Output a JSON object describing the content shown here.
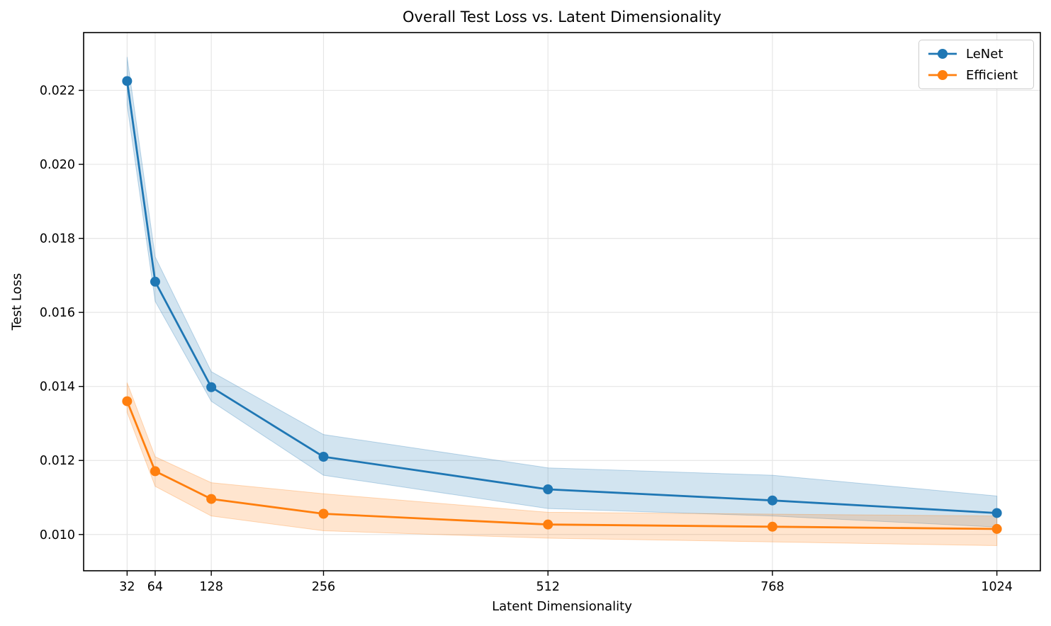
{
  "chart_data": {
    "type": "line",
    "title": "Overall Test Loss vs. Latent Dimensionality",
    "xlabel": "Latent Dimensionality",
    "ylabel": "Test Loss",
    "legend_position": "upper right",
    "grid": true,
    "band_alpha": 0.2,
    "grid_color": "#e6e6e6",
    "axis_color": "#000000",
    "x": [
      32,
      64,
      128,
      256,
      512,
      768,
      1024
    ],
    "x_ticks": [
      32,
      64,
      128,
      256,
      512,
      768,
      1024
    ],
    "x_tick_labels": [
      "32",
      "64",
      "128",
      "256",
      "512",
      "768",
      "1024"
    ],
    "y_ticks": [
      0.01,
      0.012,
      0.014,
      0.016,
      0.018,
      0.02,
      0.022
    ],
    "y_tick_labels": [
      "0.010",
      "0.012",
      "0.014",
      "0.016",
      "0.018",
      "0.020",
      "0.022"
    ],
    "xlim": [
      -17.6,
      1073.6
    ],
    "ylim": [
      0.00902,
      0.02356
    ],
    "series": [
      {
        "name": "LeNet",
        "color": "#1f77b4",
        "values": [
          0.02225,
          0.01683,
          0.01398,
          0.0121,
          0.01122,
          0.01092,
          0.01058
        ],
        "band_upper": [
          0.0229,
          0.0175,
          0.0144,
          0.0127,
          0.0118,
          0.0116,
          0.01104
        ],
        "band_lower": [
          0.0216,
          0.0163,
          0.0136,
          0.0116,
          0.0107,
          0.0105,
          0.0102
        ]
      },
      {
        "name": "Efficient",
        "color": "#ff7f0e",
        "values": [
          0.0136,
          0.01171,
          0.01096,
          0.01056,
          0.01027,
          0.01021,
          0.01015
        ],
        "band_upper": [
          0.0141,
          0.0121,
          0.0114,
          0.0111,
          0.0106,
          0.01055,
          0.0105
        ],
        "band_lower": [
          0.0133,
          0.0113,
          0.0105,
          0.0101,
          0.0099,
          0.0098,
          0.0097
        ]
      }
    ]
  }
}
